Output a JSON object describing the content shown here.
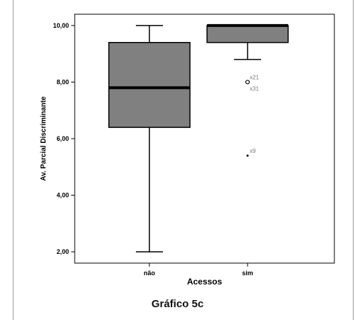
{
  "caption": "Gráfico 5c",
  "chart_data": {
    "type": "boxplot",
    "xlabel": "Acessos",
    "ylabel": "Av. Parcial Discriminante",
    "ylim": [
      1.6,
      10.4
    ],
    "yticks": [
      2,
      4,
      6,
      8,
      10
    ],
    "ytick_labels": [
      "2,00",
      "4,00",
      "6,00",
      "8,00",
      "10,00"
    ],
    "grid": false,
    "box_color": "#808080",
    "median_color": "#000000",
    "categories": [
      "não",
      "sim"
    ],
    "boxes": [
      {
        "category": "não",
        "whisker_low": 2.0,
        "q1": 6.4,
        "median": 7.8,
        "q3": 9.4,
        "whisker_high": 10.0,
        "outliers": []
      },
      {
        "category": "sim",
        "whisker_low": 8.8,
        "q1": 9.4,
        "median": 10.0,
        "q3": 10.0,
        "whisker_high": 10.0,
        "outliers": [
          {
            "value": 8.0,
            "label": "x21",
            "marker": "circle"
          },
          {
            "value": 7.8,
            "label": "x31",
            "marker": "none"
          },
          {
            "value": 5.4,
            "label": "x9",
            "marker": "dot"
          }
        ]
      }
    ]
  }
}
